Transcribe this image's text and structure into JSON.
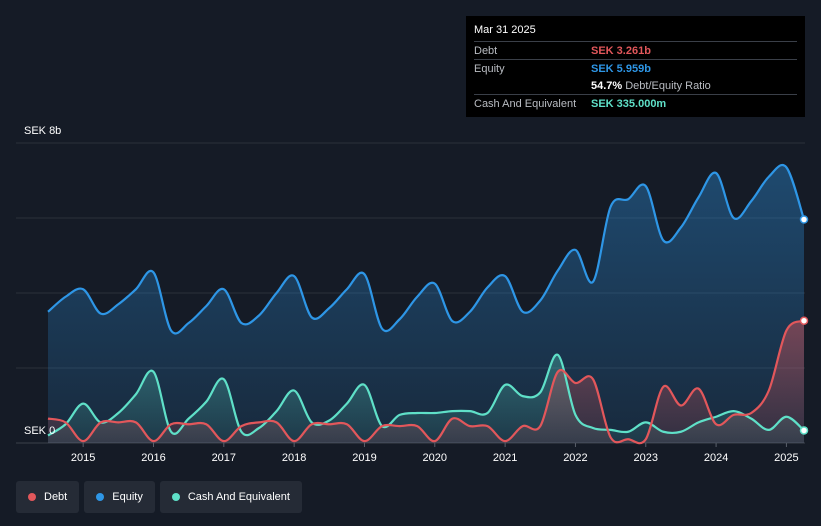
{
  "tooltip": {
    "date": "Mar 31 2025",
    "rows": [
      {
        "label": "Debt",
        "value": "SEK 3.261b",
        "color": "#e2575b"
      },
      {
        "label": "Equity",
        "value": "SEK 5.959b",
        "color": "#2e96e6"
      },
      {
        "label": "",
        "value": "54.7%",
        "note": "Debt/Equity Ratio",
        "color": "#ffffff"
      },
      {
        "label": "Cash And Equivalent",
        "value": "SEK 335.000m",
        "color": "#5fe0c8"
      }
    ]
  },
  "legend": [
    {
      "label": "Debt",
      "color": "#e2575b"
    },
    {
      "label": "Equity",
      "color": "#2e96e6"
    },
    {
      "label": "Cash And Equivalent",
      "color": "#5fe0c8"
    }
  ],
  "chart_data": {
    "type": "area",
    "y_top_label": "SEK 8b",
    "y_bottom_label": "SEK 0",
    "ylim": [
      0,
      8
    ],
    "xlim": [
      2014.5,
      2025.25
    ],
    "grid": true,
    "x_ticks": [
      "2015",
      "2016",
      "2017",
      "2018",
      "2019",
      "2020",
      "2021",
      "2022",
      "2023",
      "2024",
      "2025"
    ],
    "series": [
      {
        "name": "Equity",
        "color": "#2e96e6",
        "points": [
          [
            2014.5,
            3.5
          ],
          [
            2014.75,
            3.9
          ],
          [
            2015.0,
            4.1
          ],
          [
            2015.25,
            3.45
          ],
          [
            2015.5,
            3.7
          ],
          [
            2015.75,
            4.1
          ],
          [
            2016.0,
            4.55
          ],
          [
            2016.25,
            3.0
          ],
          [
            2016.5,
            3.2
          ],
          [
            2016.75,
            3.65
          ],
          [
            2017.0,
            4.1
          ],
          [
            2017.25,
            3.2
          ],
          [
            2017.5,
            3.4
          ],
          [
            2017.75,
            4.0
          ],
          [
            2018.0,
            4.45
          ],
          [
            2018.25,
            3.35
          ],
          [
            2018.5,
            3.6
          ],
          [
            2018.75,
            4.1
          ],
          [
            2019.0,
            4.5
          ],
          [
            2019.25,
            3.05
          ],
          [
            2019.5,
            3.3
          ],
          [
            2019.75,
            3.9
          ],
          [
            2020.0,
            4.25
          ],
          [
            2020.25,
            3.25
          ],
          [
            2020.5,
            3.5
          ],
          [
            2020.75,
            4.15
          ],
          [
            2021.0,
            4.45
          ],
          [
            2021.25,
            3.5
          ],
          [
            2021.5,
            3.8
          ],
          [
            2021.75,
            4.6
          ],
          [
            2022.0,
            5.15
          ],
          [
            2022.25,
            4.3
          ],
          [
            2022.5,
            6.3
          ],
          [
            2022.75,
            6.5
          ],
          [
            2023.0,
            6.85
          ],
          [
            2023.25,
            5.4
          ],
          [
            2023.5,
            5.75
          ],
          [
            2023.75,
            6.55
          ],
          [
            2024.0,
            7.2
          ],
          [
            2024.25,
            6.0
          ],
          [
            2024.5,
            6.45
          ],
          [
            2024.75,
            7.1
          ],
          [
            2025.0,
            7.35
          ],
          [
            2025.25,
            5.96
          ]
        ]
      },
      {
        "name": "Cash And Equivalent",
        "color": "#5fe0c8",
        "points": [
          [
            2014.5,
            0.2
          ],
          [
            2014.75,
            0.5
          ],
          [
            2015.0,
            1.05
          ],
          [
            2015.25,
            0.55
          ],
          [
            2015.5,
            0.8
          ],
          [
            2015.75,
            1.3
          ],
          [
            2016.0,
            1.9
          ],
          [
            2016.25,
            0.3
          ],
          [
            2016.5,
            0.65
          ],
          [
            2016.75,
            1.1
          ],
          [
            2017.0,
            1.7
          ],
          [
            2017.25,
            0.3
          ],
          [
            2017.5,
            0.4
          ],
          [
            2017.75,
            0.85
          ],
          [
            2018.0,
            1.4
          ],
          [
            2018.25,
            0.55
          ],
          [
            2018.5,
            0.6
          ],
          [
            2018.75,
            1.05
          ],
          [
            2019.0,
            1.55
          ],
          [
            2019.25,
            0.45
          ],
          [
            2019.5,
            0.75
          ],
          [
            2019.75,
            0.8
          ],
          [
            2020.0,
            0.8
          ],
          [
            2020.25,
            0.85
          ],
          [
            2020.5,
            0.85
          ],
          [
            2020.75,
            0.8
          ],
          [
            2021.0,
            1.55
          ],
          [
            2021.25,
            1.25
          ],
          [
            2021.5,
            1.35
          ],
          [
            2021.75,
            2.35
          ],
          [
            2022.0,
            0.75
          ],
          [
            2022.25,
            0.4
          ],
          [
            2022.5,
            0.35
          ],
          [
            2022.75,
            0.3
          ],
          [
            2023.0,
            0.55
          ],
          [
            2023.25,
            0.3
          ],
          [
            2023.5,
            0.3
          ],
          [
            2023.75,
            0.55
          ],
          [
            2024.0,
            0.7
          ],
          [
            2024.25,
            0.85
          ],
          [
            2024.5,
            0.65
          ],
          [
            2024.75,
            0.35
          ],
          [
            2025.0,
            0.7
          ],
          [
            2025.25,
            0.335
          ]
        ]
      },
      {
        "name": "Debt",
        "color": "#e2575b",
        "points": [
          [
            2014.5,
            0.65
          ],
          [
            2014.75,
            0.55
          ],
          [
            2015.0,
            0.05
          ],
          [
            2015.25,
            0.55
          ],
          [
            2015.5,
            0.55
          ],
          [
            2015.75,
            0.55
          ],
          [
            2016.0,
            0.05
          ],
          [
            2016.25,
            0.5
          ],
          [
            2016.5,
            0.5
          ],
          [
            2016.75,
            0.5
          ],
          [
            2017.0,
            0.05
          ],
          [
            2017.25,
            0.45
          ],
          [
            2017.5,
            0.55
          ],
          [
            2017.75,
            0.55
          ],
          [
            2018.0,
            0.05
          ],
          [
            2018.25,
            0.5
          ],
          [
            2018.5,
            0.5
          ],
          [
            2018.75,
            0.5
          ],
          [
            2019.0,
            0.05
          ],
          [
            2019.25,
            0.45
          ],
          [
            2019.5,
            0.45
          ],
          [
            2019.75,
            0.45
          ],
          [
            2020.0,
            0.05
          ],
          [
            2020.25,
            0.65
          ],
          [
            2020.5,
            0.45
          ],
          [
            2020.75,
            0.45
          ],
          [
            2021.0,
            0.05
          ],
          [
            2021.25,
            0.45
          ],
          [
            2021.5,
            0.45
          ],
          [
            2021.75,
            1.9
          ],
          [
            2022.0,
            1.6
          ],
          [
            2022.25,
            1.7
          ],
          [
            2022.5,
            0.15
          ],
          [
            2022.75,
            0.1
          ],
          [
            2023.0,
            0.1
          ],
          [
            2023.25,
            1.5
          ],
          [
            2023.5,
            1.0
          ],
          [
            2023.75,
            1.45
          ],
          [
            2024.0,
            0.5
          ],
          [
            2024.25,
            0.75
          ],
          [
            2024.5,
            0.8
          ],
          [
            2024.75,
            1.4
          ],
          [
            2025.0,
            3.0
          ],
          [
            2025.25,
            3.261
          ]
        ]
      }
    ]
  }
}
